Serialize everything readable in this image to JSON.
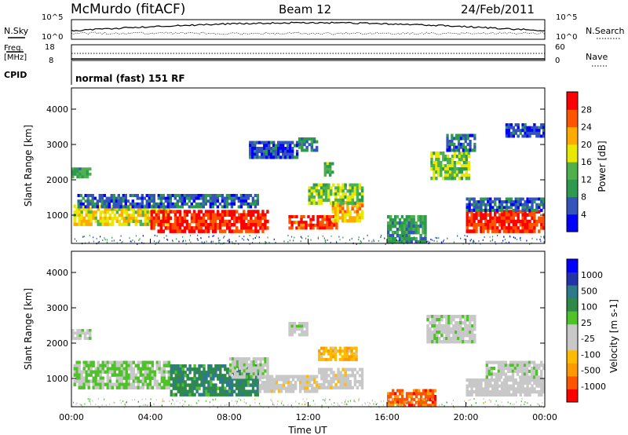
{
  "header": {
    "station": "McMurdo (fitACF)",
    "beam": "Beam 12",
    "date": "24/Feb/2011"
  },
  "top_panels": {
    "nsky_label": "N.Sky",
    "nsky_ticks": [
      "10^5",
      "10^0"
    ],
    "nsearch_label": "N.Search",
    "nsearch_ticks": [
      "10^5",
      "10^0"
    ],
    "freq_label": "Freq.",
    "freq_unit": "[MHz]",
    "freq_ticks": [
      "18",
      "8"
    ],
    "nave_label": "Nave",
    "nave_ticks": [
      "60",
      "0"
    ],
    "cpid_label": "CPID",
    "cpid_text": "normal (fast) 151 RF"
  },
  "x_axis": {
    "label": "Time UT",
    "ticks": [
      "00:00",
      "04:00",
      "08:00",
      "12:00",
      "16:00",
      "20:00",
      "00:00"
    ]
  },
  "colors": {
    "power_scale": [
      "#0000ff",
      "#3355bb",
      "#2f9a4e",
      "#4fb04e",
      "#e8e800",
      "#ffaa00",
      "#ff5500",
      "#ff0000"
    ],
    "velocity_scale": [
      "#ff0000",
      "#ff5500",
      "#ff9900",
      "#ffbb00",
      "#c8c8c8",
      "#c8c8c8",
      "#4fc22a",
      "#2f8a4a",
      "#2f7a8a",
      "#2233aa",
      "#0000ff"
    ]
  },
  "chart_data": [
    {
      "type": "heatmap",
      "panel": "power",
      "ylabel": "Slant Range [km]",
      "yticks": [
        "1000",
        "2000",
        "3000",
        "4000"
      ],
      "ylim": [
        200,
        4600
      ],
      "xlim_hours": [
        0,
        24
      ],
      "colorbar_label": "Power [dB]",
      "colorbar_ticks": [
        "4",
        "8",
        "12",
        "16",
        "20",
        "24",
        "28"
      ],
      "colorbar_range": [
        0,
        30
      ],
      "regions": [
        {
          "t0": 0.1,
          "t1": 5.0,
          "r0": 700,
          "r1": 1300,
          "v": 18
        },
        {
          "t0": 4.0,
          "t1": 10.0,
          "r0": 500,
          "r1": 1150,
          "v": 27
        },
        {
          "t0": 0.3,
          "t1": 9.5,
          "r0": 1200,
          "r1": 1600,
          "v": 6
        },
        {
          "t0": 0.0,
          "t1": 1.0,
          "r0": 2050,
          "r1": 2350,
          "v": 11
        },
        {
          "t0": 11.0,
          "t1": 13.5,
          "r0": 600,
          "r1": 1000,
          "v": 26
        },
        {
          "t0": 13.2,
          "t1": 14.8,
          "r0": 800,
          "r1": 1400,
          "v": 20
        },
        {
          "t0": 12.0,
          "t1": 14.8,
          "r0": 1300,
          "r1": 1900,
          "v": 14
        },
        {
          "t0": 9.0,
          "t1": 11.5,
          "r0": 2600,
          "r1": 3100,
          "v": 5
        },
        {
          "t0": 11.5,
          "t1": 12.5,
          "r0": 2800,
          "r1": 3200,
          "v": 9
        },
        {
          "t0": 12.8,
          "t1": 13.3,
          "r0": 2100,
          "r1": 2500,
          "v": 12
        },
        {
          "t0": 18.2,
          "t1": 20.2,
          "r0": 2000,
          "r1": 2800,
          "v": 14
        },
        {
          "t0": 19.0,
          "t1": 20.5,
          "r0": 2800,
          "r1": 3300,
          "v": 6
        },
        {
          "t0": 20.0,
          "t1": 24.0,
          "r0": 500,
          "r1": 1150,
          "v": 27
        },
        {
          "t0": 20.0,
          "t1": 24.0,
          "r0": 1100,
          "r1": 1500,
          "v": 6
        },
        {
          "t0": 22.0,
          "t1": 24.0,
          "r0": 3200,
          "r1": 3600,
          "v": 5
        },
        {
          "t0": 16.0,
          "t1": 18.0,
          "r0": 200,
          "r1": 1000,
          "v": 10
        }
      ]
    },
    {
      "type": "heatmap",
      "panel": "velocity",
      "ylabel": "Slant Range [km]",
      "yticks": [
        "1000",
        "2000",
        "3000",
        "4000"
      ],
      "ylim": [
        200,
        4600
      ],
      "xlim_hours": [
        0,
        24
      ],
      "colorbar_label": "Velocity [m s-1]",
      "colorbar_ticks": [
        "1000",
        "500",
        "100",
        "25",
        "-25",
        "-100",
        "-500",
        "-1000"
      ],
      "colorbar_range": [
        -1000,
        1000
      ],
      "regions": [
        {
          "t0": 0.1,
          "t1": 5.0,
          "r0": 700,
          "r1": 1500,
          "v": 120
        },
        {
          "t0": 5.0,
          "t1": 9.5,
          "r0": 500,
          "r1": 1400,
          "v": 400
        },
        {
          "t0": 8.0,
          "t1": 10.0,
          "r0": 1000,
          "r1": 1600,
          "v": 0
        },
        {
          "t0": 0.0,
          "t1": 1.0,
          "r0": 2100,
          "r1": 2400,
          "v": 0
        },
        {
          "t0": 9.5,
          "t1": 12.5,
          "r0": 600,
          "r1": 1100,
          "v": -150
        },
        {
          "t0": 12.5,
          "t1": 14.8,
          "r0": 700,
          "r1": 1300,
          "v": -150
        },
        {
          "t0": 12.5,
          "t1": 14.5,
          "r0": 1500,
          "r1": 1900,
          "v": -400
        },
        {
          "t0": 11.0,
          "t1": 12.0,
          "r0": 2200,
          "r1": 2600,
          "v": 0
        },
        {
          "t0": 18.0,
          "t1": 20.5,
          "r0": 2000,
          "r1": 2800,
          "v": 0
        },
        {
          "t0": 20.0,
          "t1": 24.0,
          "r0": 500,
          "r1": 1000,
          "v": -120
        },
        {
          "t0": 21.0,
          "t1": 24.0,
          "r0": 1000,
          "r1": 1500,
          "v": 0
        },
        {
          "t0": 16.0,
          "t1": 18.5,
          "r0": 200,
          "r1": 700,
          "v": -700
        }
      ]
    }
  ]
}
